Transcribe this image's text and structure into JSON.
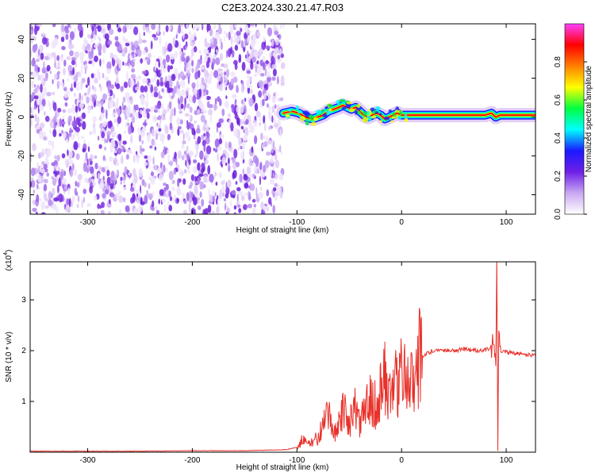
{
  "title": "C2E3.2024.330.21.47.R03",
  "colors": {
    "snr_line": "#e8312a",
    "spectrogram_noise": "#7a2be0",
    "colorbar_stops": [
      "#ffffff",
      "#c9a8f2",
      "#6f1fe6",
      "#1a1aff",
      "#00ffff",
      "#00ff40",
      "#ffff00",
      "#ff8000",
      "#ff0000",
      "#ff40ff"
    ]
  },
  "chart_data": [
    {
      "id": "spectrogram",
      "type": "heatmap",
      "xlabel": "Height of straight line (km)",
      "ylabel": "Frequency (Hz)",
      "xlim": [
        -355,
        128
      ],
      "ylim": [
        -50,
        48
      ],
      "xticks": [
        -300,
        -200,
        -100,
        0,
        100
      ],
      "yticks": [
        -40,
        -20,
        0,
        20,
        40
      ],
      "xtick_labels": [
        "-300",
        "-200",
        "-100",
        "0",
        "100"
      ],
      "ytick_labels": [
        "-40",
        "-20",
        "0",
        "20",
        "40"
      ],
      "noise_region": {
        "x": [
          -355,
          -113
        ],
        "y": [
          -50,
          48
        ],
        "normalized_amplitude_range": [
          0.0,
          0.25
        ]
      },
      "signal_ridge": {
        "x": [
          -113,
          -105,
          -98,
          -92,
          -85,
          -80,
          -75,
          -70,
          -65,
          -60,
          -56,
          -52,
          -48,
          -44,
          -40,
          -36,
          -32,
          -28,
          -24,
          -20,
          -16,
          -12,
          -8,
          -4,
          0,
          10,
          20,
          40,
          60,
          80,
          86,
          90,
          94,
          100,
          128
        ],
        "frequency_hz": [
          2,
          3,
          2,
          0,
          -1,
          0,
          1,
          3,
          4,
          5,
          6,
          5,
          4,
          5,
          3,
          1,
          0,
          1,
          2,
          1,
          -1,
          0,
          1,
          2,
          1,
          1,
          1,
          1,
          1,
          1,
          2,
          0,
          1,
          1,
          1
        ]
      },
      "colorbar": {
        "label": "Normalized spectral amplitude",
        "range": [
          0.0,
          1.0
        ],
        "ticks": [
          0.0,
          0.2,
          0.4,
          0.6,
          0.8
        ],
        "tick_labels": [
          "0.0",
          "0.2",
          "0.4",
          "0.6",
          "0.8"
        ]
      }
    },
    {
      "id": "snr",
      "type": "line",
      "xlabel": "Height of straight line (km)",
      "ylabel": "SNR (10 * v/v)",
      "y_multiplier_label": "(x10",
      "y_multiplier_exp": "4",
      "y_multiplier_close": ")",
      "xlim": [
        -355,
        128
      ],
      "ylim": [
        0,
        3.75
      ],
      "xticks": [
        -300,
        -200,
        -100,
        0,
        100
      ],
      "yticks": [
        1,
        2,
        3
      ],
      "xtick_labels": [
        "-300",
        "-200",
        "-100",
        "0",
        "100"
      ],
      "ytick_labels": [
        "1",
        "2",
        "3"
      ],
      "series": [
        {
          "color": "#e8312a",
          "x": [
            -355,
            -300,
            -250,
            -200,
            -150,
            -110,
            -100,
            -95,
            -90,
            -85,
            -80,
            -75,
            -70,
            -65,
            -60,
            -55,
            -50,
            -45,
            -40,
            -35,
            -30,
            -25,
            -20,
            -15,
            -10,
            -5,
            0,
            5,
            10,
            15,
            20,
            25,
            30,
            40,
            50,
            60,
            70,
            80,
            85,
            88,
            90,
            91,
            92,
            93,
            95,
            100,
            110,
            120,
            128
          ],
          "y": [
            0.02,
            0.02,
            0.02,
            0.03,
            0.03,
            0.05,
            0.1,
            0.25,
            0.15,
            0.2,
            0.3,
            0.5,
            0.7,
            0.4,
            0.6,
            0.8,
            0.6,
            0.9,
            0.5,
            0.8,
            1.2,
            0.9,
            1.3,
            1.5,
            1.0,
            1.4,
            1.6,
            1.5,
            1.7,
            1.8,
            1.9,
            1.95,
            2.0,
            2.02,
            2.0,
            2.03,
            2.0,
            2.02,
            2.05,
            2.1,
            1.85,
            3.7,
            0.2,
            2.3,
            2.0,
            1.98,
            1.95,
            1.92,
            1.9
          ]
        }
      ]
    }
  ]
}
